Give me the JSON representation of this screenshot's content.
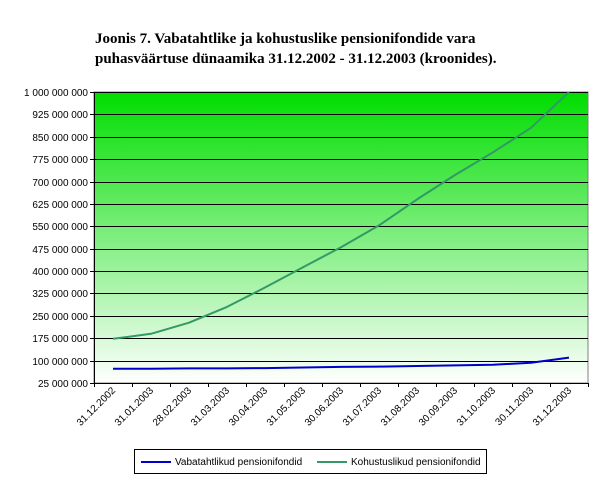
{
  "chart_data": {
    "type": "line",
    "title_lines": [
      "Joonis 7. Vabatahtlike ja kohustuslike pensionifondide vara",
      "puhasväärtuse dünaamika 31.12.2002 - 31.12.2003 (kroonides)."
    ],
    "xlabel": "",
    "ylabel": "",
    "ylim": [
      25000000,
      1000000000
    ],
    "y_ticks": [
      {
        "value": 25000000,
        "label": "25 000 000"
      },
      {
        "value": 100000000,
        "label": "100 000 000"
      },
      {
        "value": 175000000,
        "label": "175 000 000"
      },
      {
        "value": 250000000,
        "label": "250 000 000"
      },
      {
        "value": 325000000,
        "label": "325 000 000"
      },
      {
        "value": 400000000,
        "label": "400 000 000"
      },
      {
        "value": 475000000,
        "label": "475 000 000"
      },
      {
        "value": 550000000,
        "label": "550 000 000"
      },
      {
        "value": 625000000,
        "label": "625 000 000"
      },
      {
        "value": 700000000,
        "label": "700 000 000"
      },
      {
        "value": 775000000,
        "label": "775 000 000"
      },
      {
        "value": 850000000,
        "label": "850 000 000"
      },
      {
        "value": 925000000,
        "label": "925 000 000"
      },
      {
        "value": 1000000000,
        "label": "1 000 000 000"
      }
    ],
    "x_ticks": [
      "31.12.2002",
      "31.01.2003",
      "28.02.2003",
      "31.03.2003",
      "30.04.2003",
      "31.05.2003",
      "30.06.2003",
      "31.07.2003",
      "31.08.2003",
      "30.09.2003",
      "31.10.2003",
      "30.11.2003",
      "31.12.2003"
    ],
    "grid": true,
    "legend_position": "bottom",
    "series": [
      {
        "name": "Vabatahtlikud pensionifondid",
        "color": "#0000cc",
        "points": [
          [
            "31.12.2002",
            73000000
          ],
          [
            "31.01.2003",
            73000000
          ],
          [
            "28.02.2003",
            74000000
          ],
          [
            "31.03.2003",
            74000000
          ],
          [
            "30.04.2003",
            75000000
          ],
          [
            "31.05.2003",
            77000000
          ],
          [
            "30.06.2003",
            79000000
          ],
          [
            "31.07.2003",
            80000000
          ],
          [
            "31.08.2003",
            82000000
          ],
          [
            "30.09.2003",
            84000000
          ],
          [
            "31.10.2003",
            86000000
          ],
          [
            "30.11.2003",
            93000000
          ],
          [
            "31.12.2003",
            110000000
          ]
        ]
      },
      {
        "name": "Kohustuslikud pensionifondid",
        "color": "#339966",
        "points": [
          [
            "31.12.2002",
            173000000
          ],
          [
            "31.01.2003",
            190000000
          ],
          [
            "28.02.2003",
            227000000
          ],
          [
            "31.03.2003",
            280000000
          ],
          [
            "30.04.2003",
            345000000
          ],
          [
            "31.05.2003",
            413000000
          ],
          [
            "30.06.2003",
            480000000
          ],
          [
            "31.07.2003",
            553000000
          ],
          [
            "31.08.2003",
            640000000
          ],
          [
            "30.09.2003",
            722000000
          ],
          [
            "31.10.2003",
            798000000
          ],
          [
            "30.11.2003",
            880000000
          ],
          [
            "31.12.2003",
            1000000000
          ]
        ]
      }
    ],
    "background_colors": {
      "plot_top": "#00dd00",
      "plot_bottom": "#ffffff",
      "grid": "#000000"
    }
  }
}
